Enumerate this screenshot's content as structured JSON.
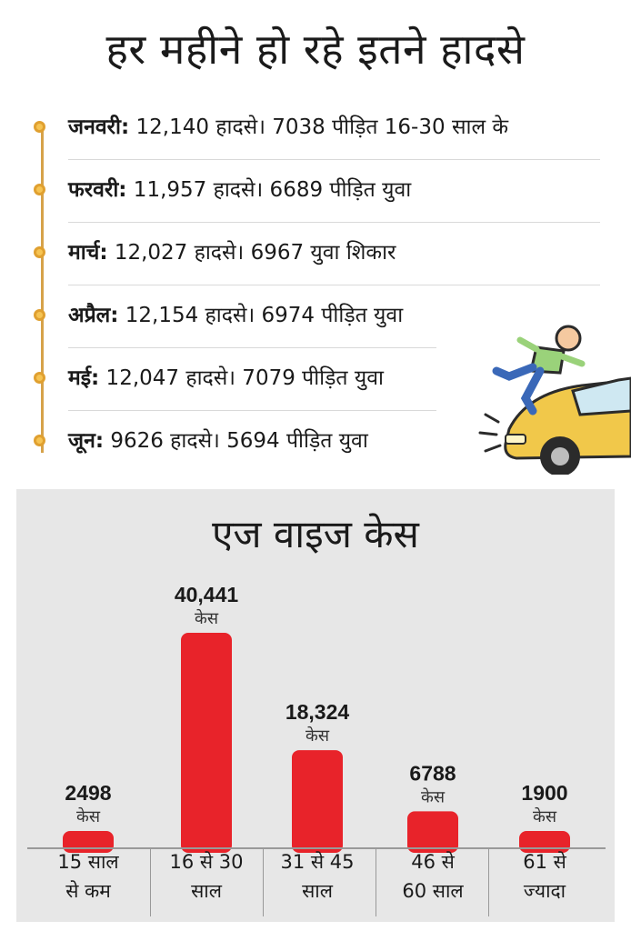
{
  "title": "हर महीने हो रहे इतने हादसे",
  "months": [
    {
      "name": "जनवरी:",
      "text": " 12,140 हादसे। 7038 पीड़ित 16-30 साल के"
    },
    {
      "name": "फरवरी:",
      "text": " 11,957 हादसे। 6689 पीड़ित युवा"
    },
    {
      "name": "मार्च:",
      "text": " 12,027 हादसे। 6967 युवा शिकार"
    },
    {
      "name": "अप्रैल:",
      "text": " 12,154 हादसे। 6974 पीड़ित युवा"
    },
    {
      "name": "मई:",
      "text": " 12,047 हादसे। 7079 पीड़ित युवा"
    },
    {
      "name": "जून:",
      "text": " 9626 हादसे। 5694 पीड़ित युवा"
    }
  ],
  "colors": {
    "bar": "#e8232a",
    "accent": "#e0a030",
    "panel": "#e7e7e7"
  },
  "icons": {
    "illustration": "car-hitting-pedestrian-icon"
  },
  "chart_data": {
    "type": "bar",
    "title": "एज वाइज केस",
    "categories": [
      "15 साल से कम",
      "16 से 30 साल",
      "31 से 45 साल",
      "46 से 60 साल",
      "61 से ज्यादा"
    ],
    "category_lines": [
      [
        "15 साल",
        "से कम"
      ],
      [
        "16 से 30",
        "साल"
      ],
      [
        "31 से 45",
        "साल"
      ],
      [
        "46 से",
        "60 साल"
      ],
      [
        "61 से",
        "ज्यादा"
      ]
    ],
    "values": [
      2498,
      40441,
      18324,
      6788,
      1900
    ],
    "value_labels": [
      "2498",
      "40,441",
      "18,324",
      "6788",
      "1900"
    ],
    "unit_label": "केस",
    "ylim": [
      0,
      40441
    ],
    "grid": false,
    "legend": "none"
  }
}
